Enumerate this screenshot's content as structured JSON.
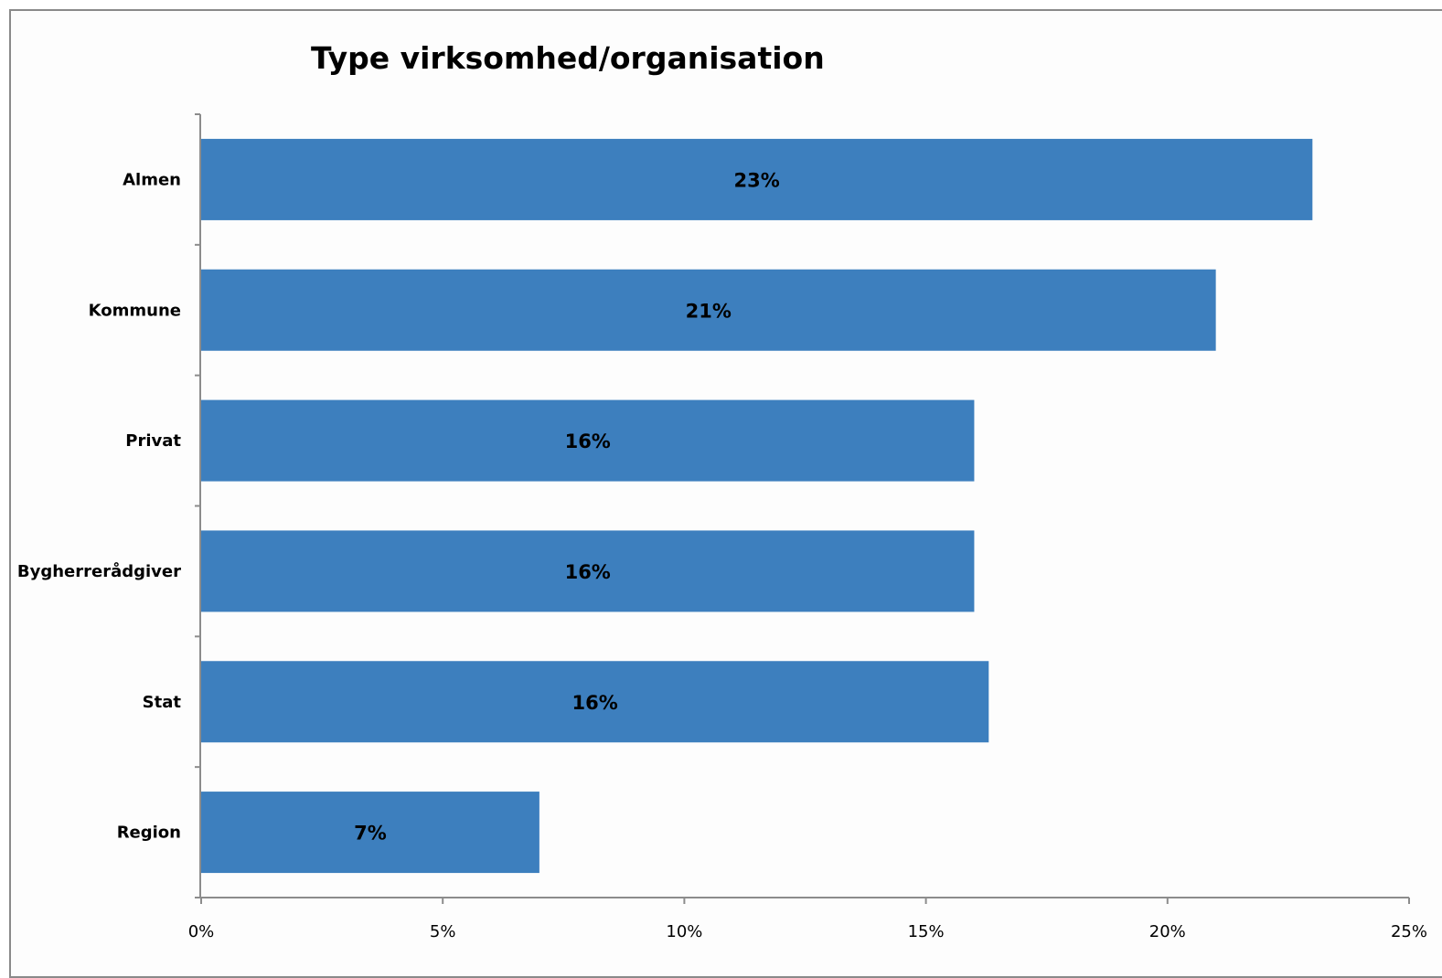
{
  "chart_data": {
    "type": "bar",
    "orientation": "horizontal",
    "title": "Type virksomhed/organisation",
    "xlabel": "",
    "ylabel": "",
    "categories": [
      "Almen",
      "Kommune",
      "Privat",
      "Bygherrerådgiver",
      "Stat",
      "Region"
    ],
    "values": [
      23,
      21,
      16,
      16,
      16.3,
      7
    ],
    "data_labels": [
      "23%",
      "21%",
      "16%",
      "16%",
      "16%",
      "7%"
    ],
    "xlim": [
      0,
      25
    ],
    "x_ticks": [
      0,
      5,
      10,
      15,
      20,
      25
    ],
    "x_tick_labels": [
      "0%",
      "5%",
      "10%",
      "15%",
      "20%",
      "25%"
    ],
    "grid": false,
    "legend": "none",
    "bar_color": "#3d7fbe"
  }
}
